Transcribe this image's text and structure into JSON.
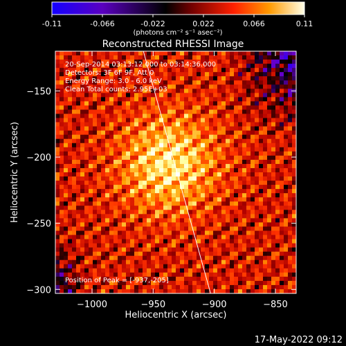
{
  "colorbar": {
    "ticks": [
      "-0.11",
      "-0.066",
      "-0.022",
      "0.022",
      "0.066",
      "0.11"
    ],
    "unit_label": "(photons cm⁻² s⁻¹ asec⁻²)",
    "range": [
      -0.11,
      0.11
    ]
  },
  "chart_data": {
    "type": "heatmap",
    "title": "Reconstructed RHESSI Image",
    "xlabel": "Heliocentric X (arcsec)",
    "ylabel": "Heliocentric Y (arcsec)",
    "xlim": [
      -1030,
      -833
    ],
    "ylim": [
      -303,
      -120
    ],
    "xticks": [
      -1000,
      -950,
      -900,
      -850
    ],
    "xtick_labels": [
      "−1000",
      "−950",
      "−900",
      "−850"
    ],
    "yticks": [
      -150,
      -200,
      -250,
      -300
    ],
    "ytick_labels": [
      "−150",
      "−200",
      "−250",
      "−300"
    ],
    "peak": {
      "x": -937,
      "y": -205
    },
    "limb_line": [
      [
        -958,
        -120
      ],
      [
        -903,
        -303
      ]
    ],
    "colormap": [
      "#2000ff",
      "#6a00c8",
      "#000000",
      "#b00000",
      "#ff3000",
      "#ffa000",
      "#ffffa0",
      "#ffffff"
    ]
  },
  "annotations": [
    "20-Sep-2014 03:13:12.000 to 03:14:36.000",
    "Detectors: 3F 6F 9F, Att 0",
    "Energy Range: 3.0 - 6.0 keV",
    "Clean     Total counts: 2.95E+03"
  ],
  "peak_label": "Position of Peak = [-937,-205]",
  "timestamp": "17-May-2022 09:12"
}
